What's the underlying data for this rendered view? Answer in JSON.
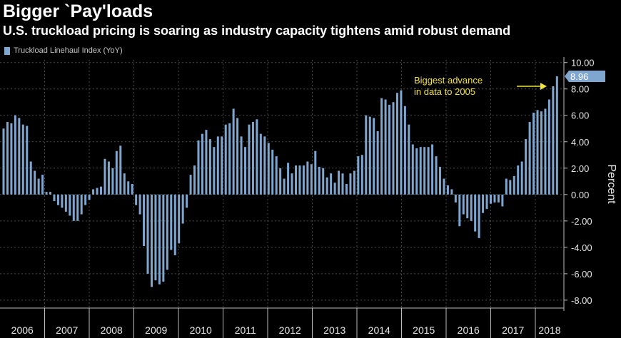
{
  "title": "Bigger `Pay'loads",
  "subtitle": "U.S. truckload pricing is soaring as industry capacity tightens amid robust demand",
  "legend_label": "Truckload Linehaul Index (YoY)",
  "colors": {
    "bar": "#7fa6cf",
    "annotation": "#f2e23a",
    "background": "#000000",
    "grid": "#4a4a4a"
  },
  "chart_data": {
    "type": "bar",
    "ylabel": "Percent",
    "ylim": [
      -8.6,
      10.2
    ],
    "yticks": [
      10,
      8,
      6,
      4,
      2,
      0,
      -2,
      -4,
      -6,
      -8
    ],
    "ytick_labels": [
      "10.00",
      "8.00",
      "6.00",
      "4.00",
      "2.00",
      "0.00",
      "-2.00",
      "-4.00",
      "-6.00",
      "-8.00"
    ],
    "x_labels": [
      "2006",
      "2007",
      "2008",
      "2009",
      "2010",
      "2011",
      "2012",
      "2013",
      "2014",
      "2015",
      "2016",
      "2017",
      "2018"
    ],
    "grid": true,
    "last_value_label": "8.96",
    "annotation": {
      "lines": [
        "Biggest advance",
        "in data to 2005"
      ]
    },
    "series": [
      {
        "name": "Truckload Linehaul Index (YoY)",
        "values": [
          5.0,
          5.5,
          5.4,
          6.0,
          5.8,
          5.3,
          5.2,
          2.5,
          1.8,
          1.2,
          1.5,
          0.2,
          0.2,
          -0.5,
          -0.8,
          -1.0,
          -1.3,
          -1.6,
          -2.0,
          -2.0,
          -1.5,
          -0.8,
          -0.4,
          0.4,
          0.5,
          0.6,
          2.7,
          2.5,
          2.0,
          3.3,
          3.7,
          1.6,
          1.0,
          0.8,
          -0.8,
          -1.5,
          -3.9,
          -6.0,
          -7.0,
          -6.5,
          -6.8,
          -6.6,
          -5.7,
          -4.2,
          -4.6,
          -3.7,
          -2.2,
          -1.0,
          1.5,
          2.2,
          4.1,
          4.6,
          4.9,
          4.2,
          3.6,
          4.4,
          4.4,
          5.3,
          5.4,
          6.5,
          5.8,
          4.4,
          3.6,
          5.3,
          5.5,
          5.7,
          4.6,
          4.4,
          3.9,
          3.4,
          2.9,
          2.0,
          1.2,
          2.4,
          1.6,
          2.2,
          2.2,
          2.2,
          2.5,
          2.3,
          3.3,
          2.1,
          2.0,
          1.3,
          1.6,
          0.9,
          1.8,
          1.6,
          0.8,
          1.6,
          1.8,
          2.9,
          3.0,
          6.0,
          5.9,
          5.8,
          4.8,
          7.3,
          7.2,
          6.8,
          7.0,
          7.7,
          7.9,
          6.7,
          5.3,
          3.8,
          3.5,
          3.6,
          3.6,
          3.6,
          3.8,
          2.9,
          2.1,
          1.2,
          0.7,
          0.4,
          -0.6,
          -2.4,
          -1.5,
          -1.8,
          -2.0,
          -2.8,
          -3.3,
          -1.4,
          -1.1,
          -0.7,
          -0.6,
          -0.6,
          -0.9,
          1.2,
          1.1,
          1.4,
          2.2,
          2.5,
          4.2,
          5.5,
          6.2,
          6.4,
          6.3,
          6.5,
          7.2,
          8.2,
          8.96
        ]
      }
    ]
  }
}
